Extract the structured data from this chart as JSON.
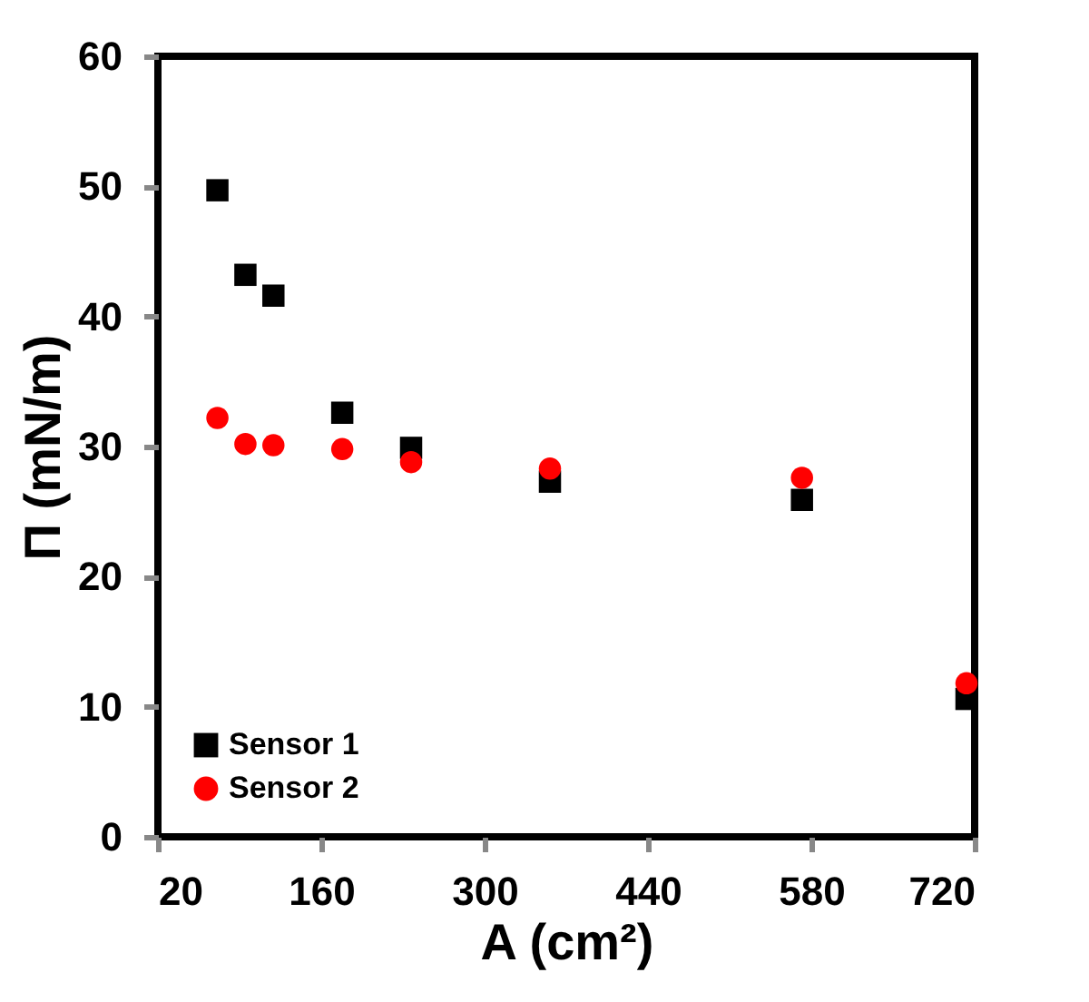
{
  "chart_data": {
    "type": "scatter",
    "xlabel": "A (cm²)",
    "ylabel": "Π  (mN/m)",
    "x": [
      71,
      95,
      119,
      178,
      237,
      356,
      572,
      713
    ],
    "xlim": [
      20,
      720
    ],
    "xticks": [
      20,
      160,
      300,
      440,
      580,
      720
    ],
    "ylim": [
      0,
      60
    ],
    "yticks": [
      0,
      10,
      20,
      30,
      40,
      50,
      60
    ],
    "grid": false,
    "legend": "bottom left",
    "series": [
      {
        "name": "Sensor 1",
        "color": "#000000",
        "marker": "square",
        "values": [
          49.7,
          43.2,
          41.6,
          32.6,
          29.9,
          27.3,
          25.9,
          10.6
        ]
      },
      {
        "name": "Sensor 2",
        "color": "#ff0000",
        "marker": "circle",
        "values": [
          32.2,
          30.2,
          30.1,
          29.8,
          28.8,
          28.3,
          27.6,
          11.8
        ]
      }
    ]
  }
}
